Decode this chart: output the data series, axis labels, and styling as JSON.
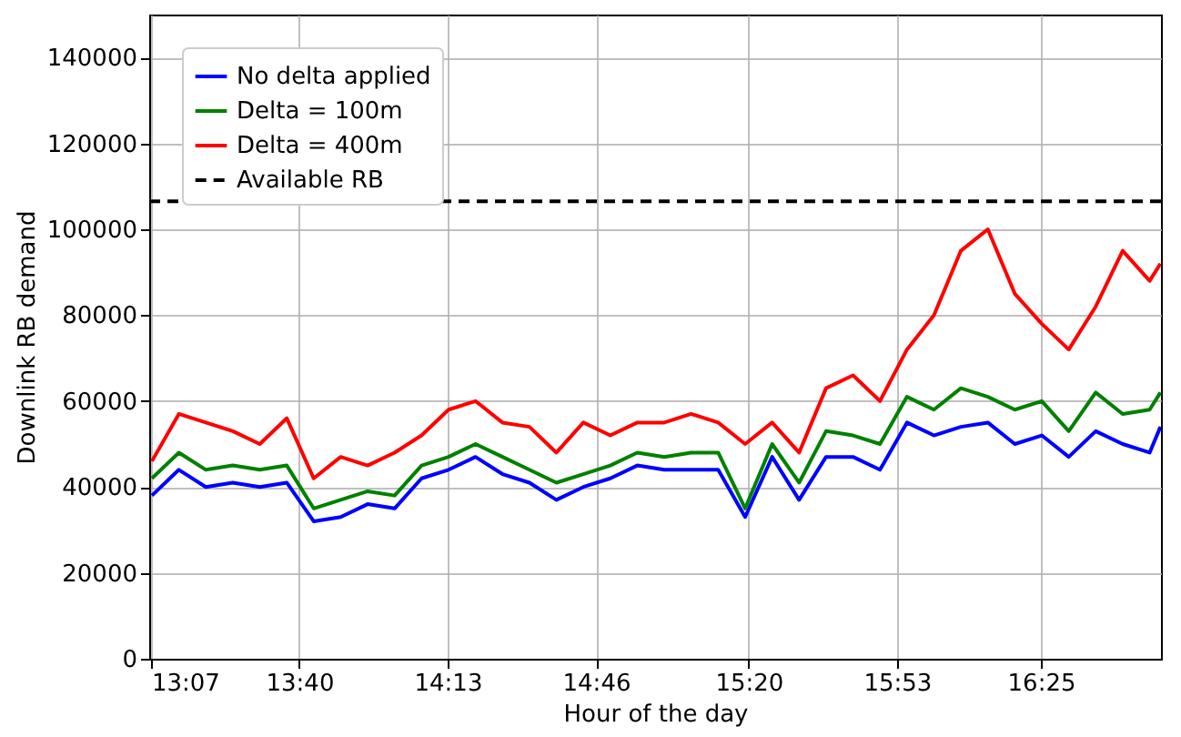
{
  "chart_data": {
    "type": "line",
    "xlabel": "Hour of the day",
    "ylabel": "Downlink RB demand",
    "x": [
      13.12,
      13.22,
      13.32,
      13.42,
      13.52,
      13.62,
      13.72,
      13.82,
      13.92,
      14.02,
      14.12,
      14.22,
      14.32,
      14.42,
      14.52,
      14.62,
      14.72,
      14.82,
      14.92,
      15.02,
      15.12,
      15.22,
      15.32,
      15.42,
      15.52,
      15.62,
      15.72,
      15.82,
      15.92,
      16.02,
      16.12,
      16.22,
      16.32,
      16.42,
      16.52,
      16.62,
      16.72,
      16.82,
      16.86
    ],
    "series": [
      {
        "name": "No delta applied",
        "color": "#0000ff",
        "values": [
          38000,
          44000,
          40000,
          41000,
          40000,
          41000,
          32000,
          33000,
          36000,
          35000,
          42000,
          44000,
          47000,
          43000,
          41000,
          37000,
          40000,
          42000,
          45000,
          44000,
          44000,
          44000,
          33000,
          47000,
          37000,
          47000,
          47000,
          44000,
          55000,
          52000,
          54000,
          55000,
          50000,
          52000,
          47000,
          53000,
          50000,
          48000,
          54000
        ]
      },
      {
        "name": "Delta = 100m",
        "color": "#008000",
        "values": [
          42000,
          48000,
          44000,
          45000,
          44000,
          45000,
          35000,
          37000,
          39000,
          38000,
          45000,
          47000,
          50000,
          47000,
          44000,
          41000,
          43000,
          45000,
          48000,
          47000,
          48000,
          48000,
          35000,
          50000,
          41000,
          53000,
          52000,
          50000,
          61000,
          58000,
          63000,
          61000,
          58000,
          60000,
          53000,
          62000,
          57000,
          58000,
          62000
        ]
      },
      {
        "name": "Delta = 400m",
        "color": "#ff0000",
        "values": [
          46000,
          57000,
          55000,
          53000,
          50000,
          56000,
          42000,
          47000,
          45000,
          48000,
          52000,
          58000,
          60000,
          55000,
          54000,
          48000,
          55000,
          52000,
          55000,
          55000,
          57000,
          55000,
          50000,
          55000,
          48000,
          63000,
          66000,
          60000,
          72000,
          80000,
          95000,
          100000,
          85000,
          78000,
          72000,
          82000,
          95000,
          88000,
          92000
        ]
      }
    ],
    "ref_lines": [
      {
        "axis": "y",
        "value": 106500,
        "label": "Available RB",
        "color": "#000000",
        "line_style": "dashed"
      }
    ],
    "xlim": [
      13.11,
      16.862
    ],
    "xticks": [
      {
        "value": 13.1167,
        "label": "13:07"
      },
      {
        "value": 13.6667,
        "label": "13:40"
      },
      {
        "value": 14.2167,
        "label": "14:13"
      },
      {
        "value": 14.7667,
        "label": "14:46"
      },
      {
        "value": 15.3333,
        "label": "15:20"
      },
      {
        "value": 15.8833,
        "label": "15:53"
      },
      {
        "value": 16.4167,
        "label": "16:25"
      }
    ],
    "ylim": [
      0,
      150000
    ],
    "yticks": [
      0,
      20000,
      40000,
      60000,
      80000,
      100000,
      120000,
      140000
    ],
    "grid": true,
    "legend": "top left",
    "line_style": "solid",
    "marker": "none"
  }
}
